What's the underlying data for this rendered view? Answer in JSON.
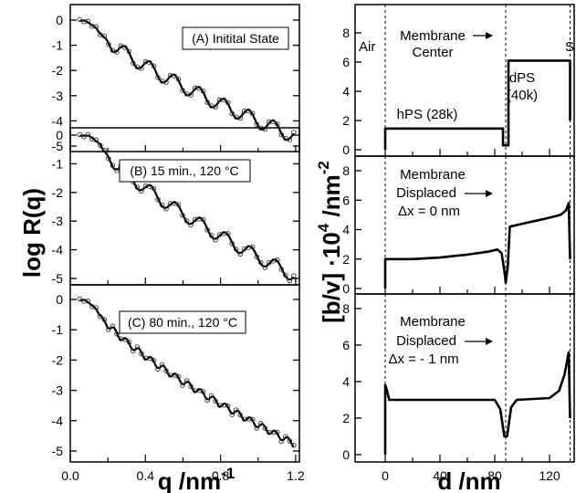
{
  "left_xlabel": "q /nm",
  "left_xlabel_exp": "-1",
  "left_ylabel": "log R(q)",
  "right_xlabel": "d /nm",
  "right_ylabel_main": "[b/v] ·10",
  "right_ylabel_exp1": "4",
  "right_ylabel_unit": " /nm",
  "right_ylabel_exp2": "-2",
  "chart_data": [
    {
      "type": "line",
      "panel": "reflectivity-A",
      "label": "(A) Initital State",
      "ylim": [
        -5.2,
        0.3
      ],
      "xlim": [
        0.0,
        1.22
      ],
      "yticks": [
        0,
        -1,
        -2,
        -3,
        -4,
        -5
      ],
      "params": {
        "q_start": 0.05,
        "q_end": 1.19,
        "plateau": 0.08,
        "y_end": -4.6,
        "fringe_period": 0.132,
        "fringe_first": 0.225,
        "fringe_depth": 0.55
      }
    },
    {
      "type": "line",
      "panel": "reflectivity-B",
      "label": "(B) 15 min., 120 °C",
      "ylim": [
        -5.2,
        0.3
      ],
      "xlim": [
        0.0,
        1.22
      ],
      "yticks": [
        0,
        -1,
        -2,
        -3,
        -4,
        -5
      ],
      "params": {
        "q_start": 0.05,
        "q_end": 1.19,
        "plateau": 0.1,
        "y_end": -4.9,
        "fringe_period": 0.133,
        "fringe_first": 0.23,
        "fringe_depth": 0.45
      }
    },
    {
      "type": "line",
      "panel": "reflectivity-C",
      "label": "(C) 80 min., 120 °C",
      "ylim": [
        -5.2,
        0.3
      ],
      "xlim": [
        0.0,
        1.22
      ],
      "xticks": [
        0.0,
        0.4,
        0.8,
        1.2
      ],
      "xticklabels": [
        "0.0",
        "0.4",
        "0.8",
        "1.2"
      ],
      "yticks": [
        0,
        -1,
        -2,
        -3,
        -4,
        -5
      ],
      "params": {
        "q_start": 0.05,
        "q_end": 1.19,
        "plateau": 0.08,
        "y_end": -4.75,
        "fringe_period": 0.066,
        "fringe_first": 0.2,
        "fringe_depth": 0.2
      }
    },
    {
      "type": "line",
      "panel": "sld-top",
      "xlim": [
        -22,
        138
      ],
      "ylim": [
        -0.3,
        9.0
      ],
      "yticks": [
        0,
        2,
        4,
        6,
        8
      ],
      "points": [
        [
          -22,
          0
        ],
        [
          0,
          0
        ],
        [
          0,
          1.45
        ],
        [
          86,
          1.45
        ],
        [
          86,
          0.3
        ],
        [
          90,
          0.3
        ],
        [
          90,
          6.1
        ],
        [
          135,
          6.1
        ],
        [
          135,
          2.0
        ]
      ],
      "vlines": [
        0,
        88,
        135
      ],
      "annotations": [
        "Air",
        "Membrane",
        "Center",
        "dPS",
        "(40k)",
        "hPS (28k)",
        "S"
      ]
    },
    {
      "type": "line",
      "panel": "sld-middle",
      "xlim": [
        -22,
        138
      ],
      "ylim": [
        -0.3,
        9.0
      ],
      "yticks": [
        0,
        2,
        4,
        6,
        8
      ],
      "points": [
        [
          -22,
          0
        ],
        [
          0,
          0
        ],
        [
          0,
          2.0
        ],
        [
          20,
          2.0
        ],
        [
          40,
          2.1
        ],
        [
          60,
          2.3
        ],
        [
          75,
          2.5
        ],
        [
          82,
          2.65
        ],
        [
          85,
          2.4
        ],
        [
          87,
          1.2
        ],
        [
          88,
          0.4
        ],
        [
          89.5,
          1.5
        ],
        [
          91,
          4.2
        ],
        [
          100,
          4.4
        ],
        [
          115,
          4.7
        ],
        [
          128,
          5.0
        ],
        [
          132,
          5.3
        ],
        [
          134,
          5.8
        ],
        [
          135,
          2.0
        ]
      ],
      "vlines": [
        0,
        88,
        135
      ],
      "annotations": [
        "Membrane",
        "Displaced",
        "Δx = 0 nm"
      ]
    },
    {
      "type": "line",
      "panel": "sld-bottom",
      "xlim": [
        -22,
        138
      ],
      "ylim": [
        -0.3,
        9.0
      ],
      "xticks": [
        0,
        40,
        80,
        120
      ],
      "xticklabels": [
        "0",
        "40",
        "80",
        "120"
      ],
      "yticks": [
        0,
        2,
        4,
        6,
        8
      ],
      "points": [
        [
          -22,
          0
        ],
        [
          0,
          0
        ],
        [
          0,
          3.8
        ],
        [
          1,
          3.6
        ],
        [
          3,
          3.0
        ],
        [
          80,
          3.0
        ],
        [
          84,
          2.5
        ],
        [
          87,
          1.0
        ],
        [
          89,
          1.0
        ],
        [
          92,
          2.6
        ],
        [
          96,
          3.0
        ],
        [
          120,
          3.1
        ],
        [
          127,
          3.5
        ],
        [
          131,
          4.4
        ],
        [
          134,
          5.6
        ],
        [
          135,
          2.0
        ]
      ],
      "vlines": [
        0,
        88,
        135
      ],
      "annotations": [
        "Membrane",
        "Displaced",
        "Δx = - 1 nm"
      ]
    }
  ]
}
